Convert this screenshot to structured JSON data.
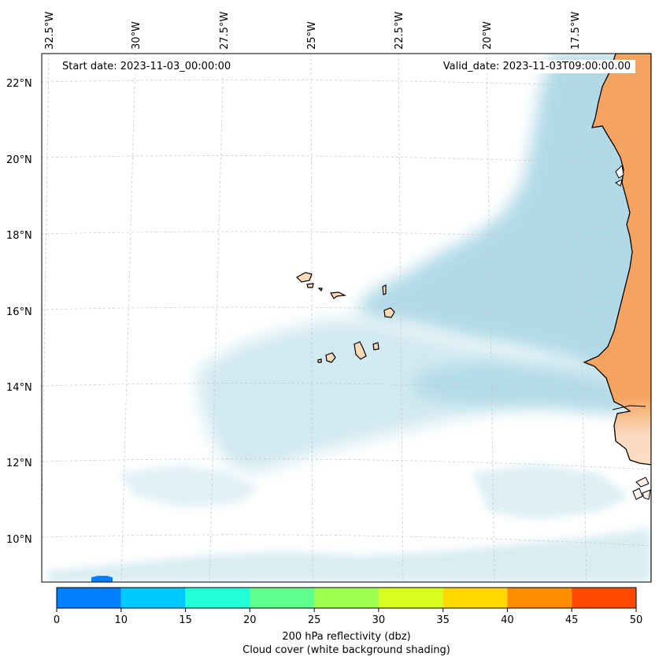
{
  "header": {
    "start_date": "Start date: 2023-11-03_00:00:00",
    "valid_date": "Valid_date: 2023-11-03T09:00:00.00"
  },
  "axes": {
    "lon_labels": [
      "32.5°W",
      "30°W",
      "27.5°W",
      "25°W",
      "22.5°W",
      "20°W",
      "17.5°W"
    ],
    "lat_labels": [
      "22°N",
      "20°N",
      "18°N",
      "16°N",
      "14°N",
      "12°N",
      "10°N"
    ]
  },
  "colorbar": {
    "ticks": [
      "0",
      "10",
      "15",
      "20",
      "25",
      "30",
      "35",
      "40",
      "45",
      "50"
    ],
    "colors": [
      "#0080ff",
      "#00c8ff",
      "#20ffd8",
      "#60ff90",
      "#a0ff50",
      "#d8ff20",
      "#ffd800",
      "#ff8c00",
      "#ff4800"
    ],
    "label": "200 hPa reflectivity (dbz)",
    "sublabel": "Cloud cover (white background shading)"
  },
  "colors": {
    "cloud": "#add8e6",
    "land": "#f4a460",
    "island": "#ffdab9",
    "border": "#000000"
  }
}
